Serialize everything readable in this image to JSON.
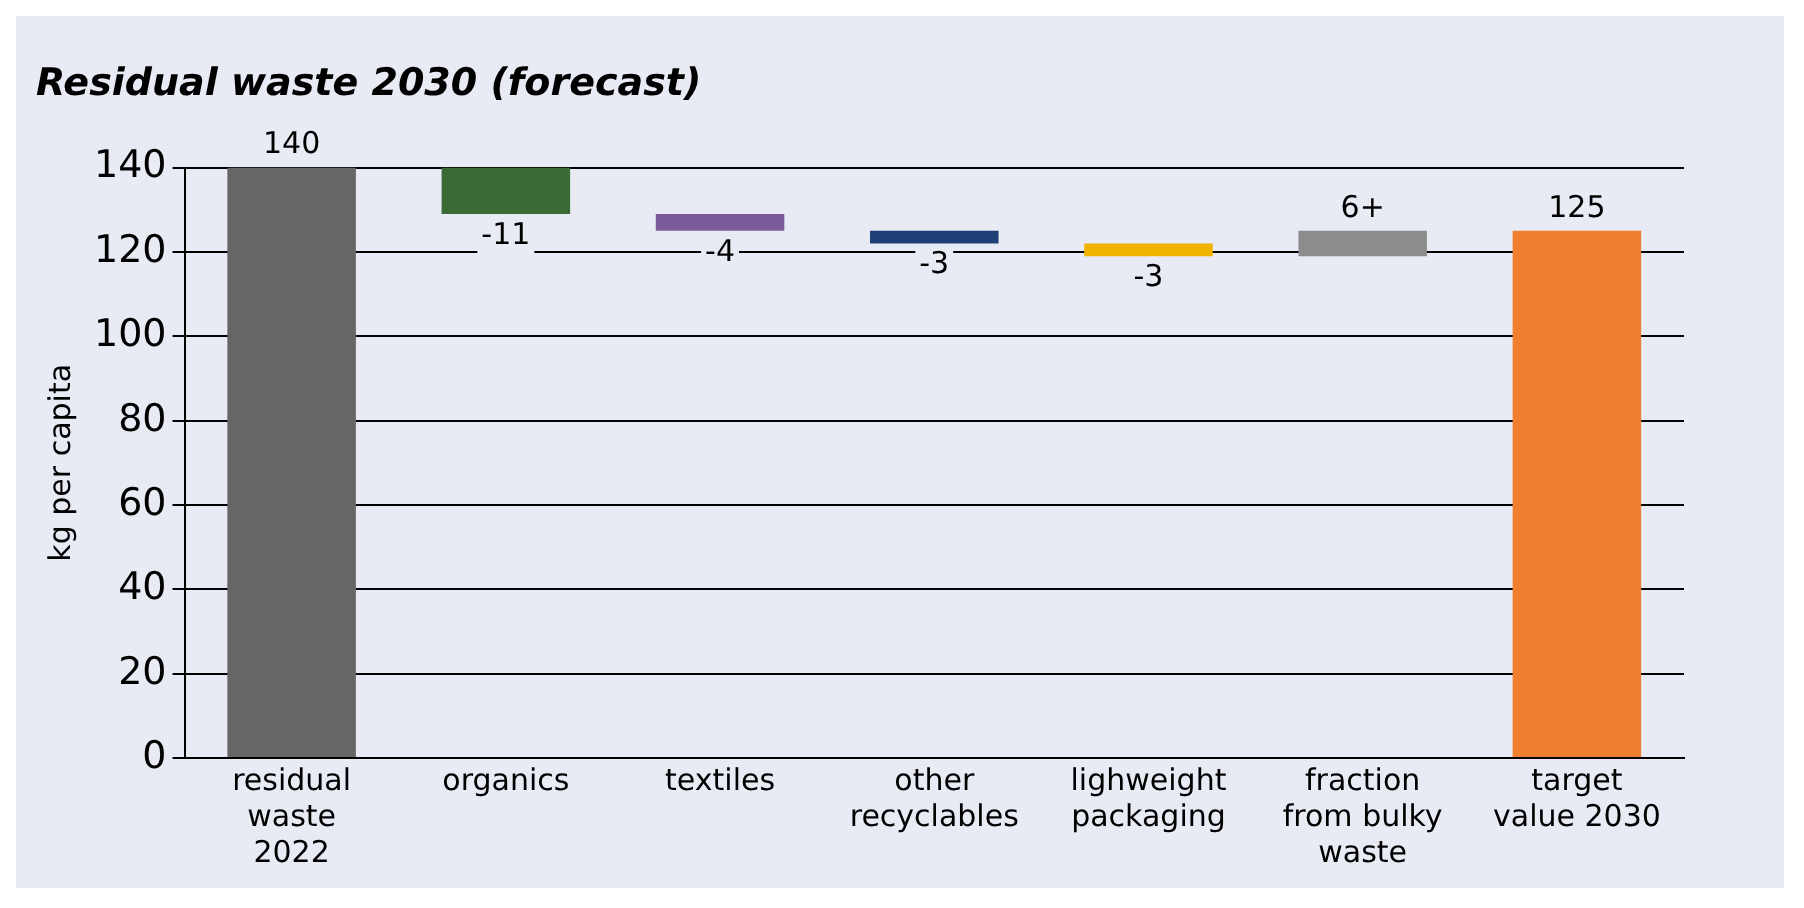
{
  "chart_data": {
    "type": "bar",
    "title": "Residual waste 2030 (forecast)",
    "ylabel": "kg per capita",
    "categories": [
      "residual\nwaste\n2022",
      "organics",
      "textiles",
      "other\nrecyclables",
      "lighweight\npackaging",
      "fraction\nfrom bulky\nwaste",
      "target\nvalue 2030"
    ],
    "values": [
      140,
      -11,
      -4,
      -3,
      -3,
      6,
      125
    ],
    "base": [
      0,
      140,
      129,
      125,
      122,
      119,
      0
    ],
    "colors": [
      "#666666",
      "#3a6b35",
      "#7b5a9a",
      "#1f3f77",
      "#f0b400",
      "#8c8c8c",
      "#f08030"
    ],
    "value_labels": [
      "140",
      "-11",
      "-4",
      "-3",
      "-3",
      "6+",
      "125"
    ],
    "ylim": [
      0,
      140
    ],
    "yticks": [
      0,
      20,
      40,
      60,
      80,
      100,
      120,
      140
    ],
    "grid": "y",
    "legend": false
  }
}
